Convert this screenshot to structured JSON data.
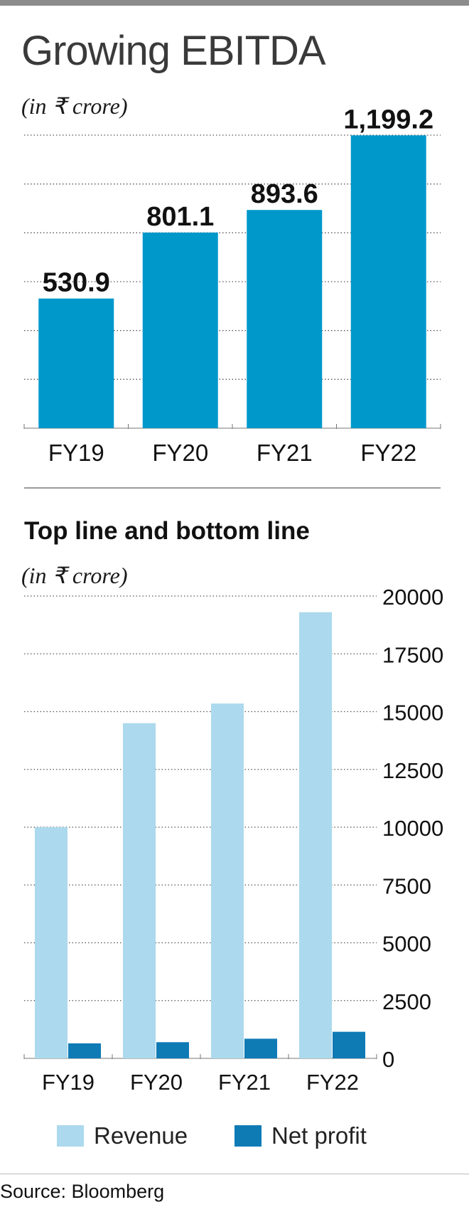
{
  "colors": {
    "ebitda_bar": "#0098cb",
    "revenue_bar": "#acd9ed",
    "net_profit_bar": "#0f7bb5",
    "grid": "#555555",
    "axis_text": "#111111"
  },
  "source": "Source: Bloomberg",
  "chart_data": [
    {
      "type": "bar",
      "title": "Growing EBITDA",
      "subtitle": "(in ₹ crore)",
      "categories": [
        "FY19",
        "FY20",
        "FY21",
        "FY22"
      ],
      "values": [
        530.9,
        801.1,
        893.6,
        1199.2
      ],
      "data_labels": [
        "530.9",
        "801.1",
        "893.6",
        "1,199.2"
      ],
      "ylim": [
        0,
        1200
      ],
      "grid": true,
      "series_color": "#0098cb"
    },
    {
      "type": "bar",
      "title": "Top line and bottom line",
      "subtitle": "(in ₹ crore)",
      "categories": [
        "FY19",
        "FY20",
        "FY21",
        "FY22"
      ],
      "series": [
        {
          "name": "Revenue",
          "values": [
            10000,
            14500,
            15350,
            19300
          ],
          "color": "#acd9ed"
        },
        {
          "name": "Net profit",
          "values": [
            650,
            700,
            850,
            1150
          ],
          "color": "#0f7bb5"
        }
      ],
      "y_ticks": [
        "0",
        "2500",
        "5000",
        "7500",
        "10000",
        "12500",
        "15000",
        "17500",
        "20000"
      ],
      "ylim": [
        0,
        20000
      ],
      "grid": true,
      "y_axis_position": "right",
      "legend_position": "bottom"
    }
  ]
}
